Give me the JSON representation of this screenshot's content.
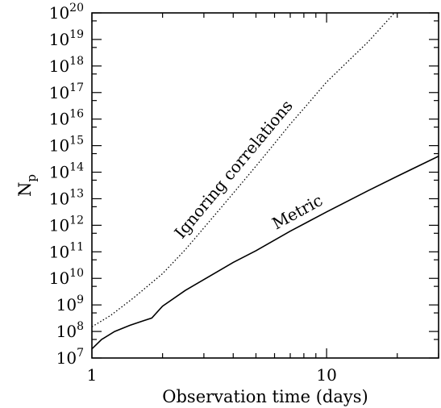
{
  "chart_data": {
    "type": "line",
    "xlabel": "Observation time (days)",
    "ylabel_main": "N",
    "ylabel_sub": "p",
    "x_scale": "log",
    "y_scale": "log",
    "xlim": [
      1,
      30
    ],
    "ylim": [
      10000000.0,
      1e+20
    ],
    "x_tick_labels": [
      {
        "value": 1,
        "label": "1"
      },
      {
        "value": 10,
        "label": "10"
      }
    ],
    "y_tick_labels": [
      {
        "value": 10000000.0,
        "base": "10",
        "exp": "7"
      },
      {
        "value": 100000000.0,
        "base": "10",
        "exp": "8"
      },
      {
        "value": 1000000000.0,
        "base": "10",
        "exp": "9"
      },
      {
        "value": 10000000000.0,
        "base": "10",
        "exp": "10"
      },
      {
        "value": 100000000000.0,
        "base": "10",
        "exp": "11"
      },
      {
        "value": 1000000000000.0,
        "base": "10",
        "exp": "12"
      },
      {
        "value": 10000000000000.0,
        "base": "10",
        "exp": "13"
      },
      {
        "value": 100000000000000.0,
        "base": "10",
        "exp": "14"
      },
      {
        "value": 1000000000000000.0,
        "base": "10",
        "exp": "15"
      },
      {
        "value": 1e+16,
        "base": "10",
        "exp": "16"
      },
      {
        "value": 1e+17,
        "base": "10",
        "exp": "17"
      },
      {
        "value": 1e+18,
        "base": "10",
        "exp": "18"
      },
      {
        "value": 1e+19,
        "base": "10",
        "exp": "19"
      },
      {
        "value": 1e+20,
        "base": "10",
        "exp": "20"
      }
    ],
    "series": [
      {
        "name": "Metric",
        "style": "solid",
        "color": "#000000",
        "points": [
          [
            1.0,
            22000000.0
          ],
          [
            1.1,
            50000000.0
          ],
          [
            1.25,
            100000000.0
          ],
          [
            1.45,
            170000000.0
          ],
          [
            1.65,
            250000000.0
          ],
          [
            1.8,
            320000000.0
          ],
          [
            2.0,
            900000000.0
          ],
          [
            2.5,
            3500000000.0
          ],
          [
            3.0,
            9000000000.0
          ],
          [
            4.0,
            40000000000.0
          ],
          [
            5.0,
            110000000000.0
          ],
          [
            7.0,
            600000000000.0
          ],
          [
            10.0,
            3200000000000.0
          ],
          [
            15.0,
            20000000000000.0
          ],
          [
            20.0,
            70000000000000.0
          ],
          [
            30.0,
            400000000000000.0
          ]
        ]
      },
      {
        "name": "Ignoring correlations",
        "style": "dotted",
        "color": "#000000",
        "points": [
          [
            1.0,
            150000000.0
          ],
          [
            1.2,
            400000000.0
          ],
          [
            1.5,
            1800000000.0
          ],
          [
            2.0,
            15000000000.0
          ],
          [
            2.5,
            120000000000.0
          ],
          [
            3.0,
            800000000000.0
          ],
          [
            4.0,
            16000000000000.0
          ],
          [
            5.0,
            170000000000000.0
          ],
          [
            6.0,
            1200000000000000.0
          ],
          [
            7.0,
            6500000000000000.0
          ],
          [
            8.0,
            2.5e+16
          ],
          [
            10.0,
            2.5e+17
          ],
          [
            15.0,
            8e+18
          ],
          [
            20.0,
            1.3e+20
          ],
          [
            30.0,
            1.4e+21
          ]
        ]
      }
    ],
    "annotations": [
      {
        "text": "Metric",
        "series": "Metric"
      },
      {
        "text": "Ignoring correlations",
        "series": "Ignoring correlations"
      }
    ],
    "grid": false,
    "legend": "none"
  }
}
